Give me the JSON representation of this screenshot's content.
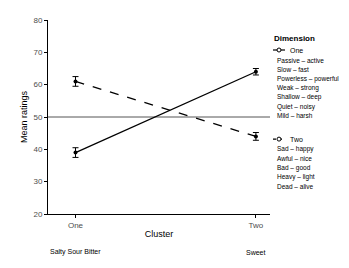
{
  "chart_data": {
    "type": "line",
    "x_label": "Cluster",
    "y_label": "Mean ratings",
    "categories": [
      "One",
      "Two"
    ],
    "category_notes": [
      "Salty Sour Bitter",
      "Sweet"
    ],
    "ylim": [
      20,
      80
    ],
    "yticks": [
      20,
      30,
      40,
      50,
      60,
      70,
      80
    ],
    "grid": false,
    "hline": 50,
    "legend": "right",
    "legend_title": "Dimension",
    "series": [
      {
        "name": "One",
        "color": "#000000",
        "line_style": "solid",
        "marker": "circle",
        "values": [
          39,
          64
        ],
        "errors": [
          1.5,
          1
        ],
        "items": [
          "Passive – active",
          "Slow – fast",
          "Powerless – powerful",
          "Weak – strong",
          "Shallow – deep",
          "Quiet – noisy",
          "Mild – harsh"
        ]
      },
      {
        "name": "Two",
        "color": "#000000",
        "line_style": "dash",
        "marker": "circle",
        "values": [
          61,
          44
        ],
        "errors": [
          1.5,
          1.2
        ],
        "items": [
          "Sad – happy",
          "Awful – nice",
          "Bad – good",
          "Heavy – light",
          "Dead – alive"
        ]
      }
    ]
  }
}
